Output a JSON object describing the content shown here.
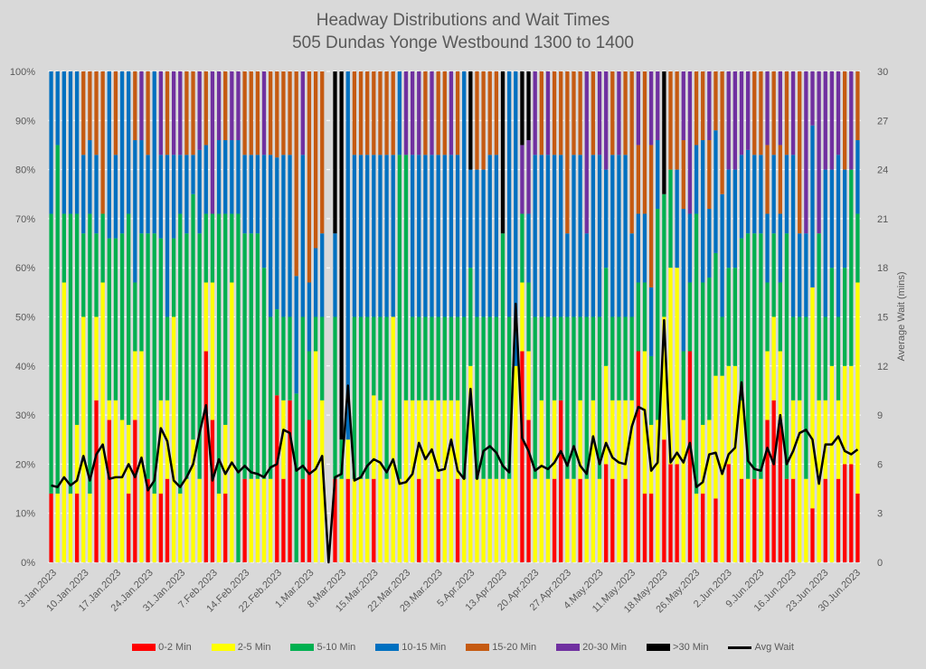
{
  "chart_data": {
    "type": "bar",
    "stacked": true,
    "percent": true,
    "title": "Headway Distributions and Wait Times",
    "subtitle": "505 Dundas  Yonge Westbound 1300 to 1400",
    "ylabel": "",
    "y2label": "Average Wait (mins)",
    "ylim": [
      0,
      100
    ],
    "y2lim": [
      0,
      30
    ],
    "yticks": [
      "0%",
      "10%",
      "20%",
      "30%",
      "40%",
      "50%",
      "60%",
      "70%",
      "80%",
      "90%",
      "100%"
    ],
    "y2ticks": [
      "0",
      "3",
      "6",
      "9",
      "12",
      "15",
      "18",
      "21",
      "24",
      "27",
      "30"
    ],
    "grid": true,
    "legend_position": "bottom",
    "xtick_labels": [
      "3.Jan.2023",
      "10.Jan.2023",
      "17.Jan.2023",
      "24.Jan.2023",
      "31.Jan.2023",
      "7.Feb.2023",
      "14.Feb.2023",
      "22.Feb.2023",
      "1.Mar.2023",
      "8.Mar.2023",
      "15.Mar.2023",
      "22.Mar.2023",
      "29.Mar.2023",
      "5.Apr.2023",
      "13.Apr.2023",
      "20.Apr.2023",
      "27.Apr.2023",
      "4.May.2023",
      "11.May.2023",
      "18.May.2023",
      "26.May.2023",
      "2.Jun.2023",
      "9.Jun.2023",
      "16.Jun.2023",
      "23.Jun.2023",
      "30.Jun.2023"
    ],
    "series_names": [
      "0-2 Min",
      "2-5 Min",
      "5-10 Min",
      "10-15 Min",
      "15-20 Min",
      "20-30 Min",
      ">30 Min"
    ],
    "series_colors": [
      "#ff0000",
      "#ffff00",
      "#00b050",
      "#0070c0",
      "#c55a11",
      "#7030a0",
      "#000000"
    ],
    "line_series": {
      "name": "Avg Wait",
      "color": "#000000"
    },
    "bars": [
      [
        14,
        0,
        57,
        29,
        0,
        0,
        0,
        4.7
      ],
      [
        0,
        14,
        71,
        15,
        0,
        0,
        0,
        4.6
      ],
      [
        0,
        57,
        14,
        29,
        0,
        0,
        0,
        5.2
      ],
      [
        0,
        14,
        57,
        29,
        0,
        0,
        0,
        4.7
      ],
      [
        14,
        14,
        43,
        29,
        0,
        0,
        0,
        5.0
      ],
      [
        0,
        50,
        17,
        16,
        17,
        0,
        0,
        6.5
      ],
      [
        0,
        14,
        57,
        15,
        14,
        0,
        0,
        5.0
      ],
      [
        33,
        17,
        17,
        16,
        17,
        0,
        0,
        6.6
      ],
      [
        0,
        57,
        14,
        0,
        29,
        0,
        0,
        7.2
      ],
      [
        29,
        4,
        33,
        34,
        0,
        0,
        0,
        5.1
      ],
      [
        0,
        33,
        33,
        17,
        17,
        0,
        0,
        5.2
      ],
      [
        0,
        29,
        38,
        33,
        0,
        0,
        0,
        5.2
      ],
      [
        14,
        14,
        43,
        29,
        0,
        0,
        0,
        6.0
      ],
      [
        29,
        14,
        14,
        29,
        14,
        0,
        0,
        5.2
      ],
      [
        0,
        43,
        24,
        19,
        0,
        14,
        0,
        6.4
      ],
      [
        17,
        0,
        50,
        16,
        17,
        0,
        0,
        4.4
      ],
      [
        0,
        14,
        53,
        33,
        0,
        0,
        0,
        5.0
      ],
      [
        14,
        19,
        33,
        17,
        0,
        17,
        0,
        8.2
      ],
      [
        17,
        16,
        17,
        33,
        17,
        0,
        0,
        7.4
      ],
      [
        0,
        50,
        16,
        17,
        0,
        17,
        0,
        5.0
      ],
      [
        0,
        14,
        57,
        12,
        0,
        17,
        0,
        4.6
      ],
      [
        0,
        17,
        50,
        16,
        17,
        0,
        0,
        5.2
      ],
      [
        0,
        25,
        50,
        8,
        17,
        0,
        0,
        6.0
      ],
      [
        0,
        17,
        50,
        17,
        0,
        16,
        0,
        7.9
      ],
      [
        43,
        14,
        14,
        14,
        15,
        0,
        0,
        9.6
      ],
      [
        29,
        28,
        14,
        0,
        0,
        29,
        0,
        5.0
      ],
      [
        0,
        14,
        57,
        15,
        0,
        14,
        0,
        6.3
      ],
      [
        14,
        14,
        43,
        15,
        14,
        0,
        0,
        5.4
      ],
      [
        0,
        57,
        14,
        15,
        0,
        14,
        0,
        6.1
      ],
      [
        0,
        0,
        71,
        15,
        0,
        14,
        0,
        5.5
      ],
      [
        17,
        0,
        50,
        16,
        17,
        0,
        0,
        5.9
      ],
      [
        0,
        17,
        50,
        16,
        17,
        0,
        0,
        5.5
      ],
      [
        0,
        17,
        50,
        16,
        17,
        0,
        0,
        5.4
      ],
      [
        0,
        17,
        43,
        23,
        0,
        17,
        0,
        5.2
      ],
      [
        0,
        17,
        33,
        33,
        17,
        0,
        0,
        5.8
      ],
      [
        33,
        0,
        17,
        30,
        17,
        0,
        0,
        6.0
      ],
      [
        17,
        16,
        17,
        33,
        17,
        0,
        0,
        8.1
      ],
      [
        33,
        0,
        17,
        33,
        17,
        0,
        0,
        7.9
      ],
      [
        0,
        0,
        33,
        23,
        40,
        0,
        0,
        5.6
      ],
      [
        17,
        0,
        33,
        33,
        0,
        17,
        0,
        5.9
      ],
      [
        29,
        0,
        14,
        14,
        43,
        0,
        0,
        5.4
      ],
      [
        0,
        43,
        7,
        14,
        36,
        0,
        0,
        5.7
      ],
      [
        0,
        33,
        17,
        17,
        33,
        0,
        0,
        6.5
      ],
      [
        0,
        0,
        0,
        0,
        0,
        0,
        0,
        0
      ],
      [
        17,
        0,
        33,
        17,
        0,
        0,
        33,
        5.2
      ],
      [
        0,
        17,
        8,
        0,
        0,
        0,
        75,
        5.4
      ],
      [
        17,
        8,
        0,
        75,
        0,
        0,
        0,
        10.8
      ],
      [
        0,
        17,
        33,
        33,
        17,
        0,
        0,
        5.0
      ],
      [
        0,
        17,
        33,
        33,
        17,
        0,
        0,
        5.2
      ],
      [
        0,
        17,
        33,
        33,
        17,
        0,
        0,
        5.9
      ],
      [
        17,
        17,
        16,
        33,
        17,
        0,
        0,
        6.3
      ],
      [
        0,
        33,
        17,
        33,
        17,
        0,
        0,
        6.1
      ],
      [
        0,
        17,
        33,
        33,
        17,
        0,
        0,
        5.5
      ],
      [
        0,
        50,
        0,
        33,
        17,
        0,
        0,
        6.3
      ],
      [
        0,
        17,
        66,
        17,
        0,
        0,
        0,
        4.8
      ],
      [
        0,
        33,
        50,
        0,
        0,
        17,
        0,
        4.9
      ],
      [
        0,
        33,
        17,
        33,
        0,
        17,
        0,
        5.4
      ],
      [
        17,
        16,
        17,
        33,
        0,
        17,
        0,
        7.3
      ],
      [
        0,
        33,
        17,
        33,
        17,
        0,
        0,
        6.3
      ],
      [
        0,
        33,
        17,
        33,
        0,
        17,
        0,
        6.9
      ],
      [
        17,
        16,
        17,
        33,
        17,
        0,
        0,
        5.6
      ],
      [
        0,
        33,
        17,
        33,
        17,
        0,
        0,
        5.7
      ],
      [
        0,
        33,
        17,
        33,
        0,
        17,
        0,
        7.5
      ],
      [
        17,
        16,
        17,
        33,
        17,
        0,
        0,
        5.6
      ],
      [
        0,
        17,
        33,
        50,
        0,
        0,
        0,
        5.1
      ],
      [
        0,
        40,
        20,
        20,
        0,
        0,
        20,
        10.6
      ],
      [
        0,
        17,
        33,
        30,
        20,
        0,
        0,
        5.1
      ],
      [
        0,
        17,
        33,
        30,
        20,
        0,
        0,
        6.8
      ],
      [
        0,
        17,
        33,
        33,
        17,
        0,
        0,
        7.1
      ],
      [
        0,
        17,
        33,
        33,
        17,
        0,
        0,
        6.7
      ],
      [
        0,
        17,
        50,
        0,
        0,
        0,
        33,
        5.9
      ],
      [
        0,
        17,
        33,
        50,
        0,
        0,
        0,
        5.5
      ],
      [
        0,
        40,
        0,
        60,
        0,
        0,
        0,
        15.8
      ],
      [
        43,
        14,
        14,
        0,
        0,
        14,
        15,
        7.6
      ],
      [
        29,
        14,
        14,
        14,
        0,
        15,
        14,
        6.8
      ],
      [
        0,
        17,
        33,
        33,
        0,
        17,
        0,
        5.6
      ],
      [
        0,
        33,
        17,
        33,
        17,
        0,
        0,
        5.9
      ],
      [
        0,
        17,
        33,
        33,
        0,
        17,
        0,
        5.7
      ],
      [
        17,
        16,
        17,
        33,
        17,
        0,
        0,
        6.1
      ],
      [
        33,
        0,
        17,
        33,
        17,
        0,
        0,
        6.8
      ],
      [
        0,
        17,
        33,
        17,
        33,
        0,
        0,
        5.9
      ],
      [
        0,
        17,
        33,
        33,
        17,
        0,
        0,
        7.1
      ],
      [
        17,
        16,
        17,
        33,
        17,
        0,
        0,
        5.9
      ],
      [
        0,
        17,
        33,
        17,
        0,
        33,
        0,
        5.4
      ],
      [
        0,
        33,
        17,
        33,
        17,
        0,
        0,
        7.7
      ],
      [
        0,
        17,
        33,
        33,
        0,
        17,
        0,
        6.0
      ],
      [
        20,
        20,
        20,
        20,
        0,
        20,
        0,
        7.3
      ],
      [
        17,
        16,
        17,
        33,
        17,
        0,
        0,
        6.4
      ],
      [
        0,
        33,
        17,
        33,
        0,
        17,
        0,
        6.1
      ],
      [
        17,
        16,
        17,
        33,
        17,
        0,
        0,
        6.0
      ],
      [
        0,
        33,
        17,
        17,
        33,
        0,
        0,
        8.3
      ],
      [
        43,
        0,
        14,
        14,
        14,
        15,
        0,
        9.5
      ],
      [
        14,
        29,
        14,
        14,
        29,
        0,
        0,
        9.3
      ],
      [
        14,
        14,
        14,
        14,
        29,
        15,
        0,
        5.6
      ],
      [
        0,
        29,
        43,
        14,
        0,
        14,
        0,
        6.1
      ],
      [
        25,
        25,
        25,
        0,
        0,
        0,
        25,
        14.8
      ],
      [
        20,
        40,
        20,
        0,
        20,
        0,
        0,
        6.1
      ],
      [
        20,
        40,
        0,
        20,
        20,
        0,
        0,
        6.7
      ],
      [
        0,
        29,
        14,
        29,
        14,
        14,
        0,
        6.1
      ],
      [
        43,
        0,
        14,
        14,
        0,
        29,
        0,
        7.3
      ],
      [
        0,
        14,
        57,
        14,
        15,
        0,
        0,
        4.6
      ],
      [
        14,
        14,
        29,
        29,
        14,
        0,
        0,
        4.9
      ],
      [
        0,
        29,
        29,
        14,
        14,
        14,
        0,
        6.6
      ],
      [
        13,
        25,
        25,
        25,
        12,
        0,
        0,
        6.7
      ],
      [
        0,
        38,
        12,
        25,
        25,
        0,
        0,
        5.4
      ],
      [
        20,
        20,
        20,
        20,
        0,
        20,
        0,
        6.6
      ],
      [
        0,
        40,
        20,
        20,
        0,
        20,
        0,
        7.0
      ],
      [
        17,
        16,
        33,
        17,
        0,
        17,
        0,
        11.0
      ],
      [
        0,
        17,
        50,
        17,
        0,
        16,
        0,
        6.2
      ],
      [
        17,
        0,
        50,
        16,
        17,
        0,
        0,
        5.7
      ],
      [
        0,
        17,
        50,
        16,
        17,
        0,
        0,
        5.6
      ],
      [
        29,
        14,
        14,
        14,
        14,
        15,
        0,
        7.0
      ],
      [
        33,
        17,
        17,
        16,
        17,
        0,
        0,
        6.0
      ],
      [
        29,
        14,
        14,
        14,
        14,
        15,
        0,
        9.0
      ],
      [
        17,
        0,
        50,
        16,
        17,
        0,
        0,
        6.0
      ],
      [
        17,
        16,
        17,
        33,
        0,
        17,
        0,
        6.8
      ],
      [
        0,
        33,
        17,
        17,
        33,
        0,
        0,
        7.9
      ],
      [
        0,
        17,
        33,
        17,
        0,
        33,
        0,
        8.1
      ],
      [
        11,
        45,
        0,
        33,
        0,
        11,
        0,
        7.5
      ],
      [
        0,
        33,
        34,
        0,
        0,
        33,
        0,
        4.8
      ],
      [
        17,
        16,
        17,
        30,
        0,
        20,
        0,
        7.2
      ],
      [
        0,
        40,
        20,
        20,
        0,
        20,
        0,
        7.2
      ],
      [
        17,
        16,
        17,
        33,
        0,
        17,
        0,
        7.7
      ],
      [
        20,
        20,
        20,
        20,
        20,
        0,
        0,
        6.8
      ],
      [
        20,
        20,
        40,
        0,
        0,
        20,
        0,
        6.6
      ],
      [
        14,
        43,
        14,
        15,
        14,
        0,
        0,
        6.9
      ]
    ]
  },
  "legend": [
    {
      "label": "0-2 Min",
      "color": "#ff0000",
      "kind": "box"
    },
    {
      "label": "2-5 Min",
      "color": "#ffff00",
      "kind": "box"
    },
    {
      "label": "5-10 Min",
      "color": "#00b050",
      "kind": "box"
    },
    {
      "label": "10-15 Min",
      "color": "#0070c0",
      "kind": "box"
    },
    {
      "label": "15-20 Min",
      "color": "#c55a11",
      "kind": "box"
    },
    {
      "label": "20-30 Min",
      "color": "#7030a0",
      "kind": "box"
    },
    {
      "label": ">30 Min",
      "color": "#000000",
      "kind": "box"
    },
    {
      "label": "Avg Wait",
      "color": "#000000",
      "kind": "line"
    }
  ]
}
